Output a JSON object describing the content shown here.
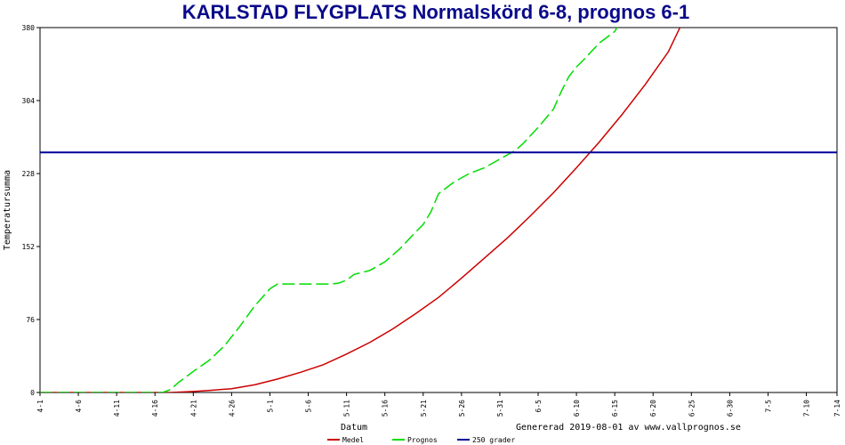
{
  "chart_data": {
    "type": "line",
    "title": "KARLSTAD FLYGPLATS Normalskörd 6-8, prognos 6-1",
    "xlabel": "Datum",
    "ylabel": "Temperatursumma",
    "ylim": [
      0,
      380
    ],
    "yticks": [
      0,
      76,
      152,
      228,
      304,
      380
    ],
    "xticks": [
      "4-1",
      "4-6",
      "4-11",
      "4-16",
      "4-21",
      "4-26",
      "5-1",
      "5-6",
      "5-11",
      "5-16",
      "5-21",
      "5-26",
      "5-31",
      "6-5",
      "6-10",
      "6-15",
      "6-20",
      "6-25",
      "6-30",
      "7-5",
      "7-10",
      "7-14"
    ],
    "xtick_days": [
      0,
      5,
      10,
      15,
      20,
      25,
      30,
      35,
      40,
      45,
      50,
      55,
      60,
      65,
      70,
      75,
      80,
      85,
      90,
      95,
      100,
      104
    ],
    "series": [
      {
        "name": "Medel",
        "color": "#cc0000",
        "style": "solid",
        "x": [
          0,
          15,
          17,
          20,
          22,
          25,
          28,
          31,
          34,
          37,
          40,
          43,
          46,
          49,
          52,
          55,
          58,
          61,
          64,
          67,
          70,
          73,
          76,
          79,
          82,
          83.5
        ],
        "y": [
          0,
          0,
          0,
          1,
          2,
          4,
          8,
          14,
          21,
          29,
          40,
          52,
          66,
          82,
          99,
          119,
          140,
          161,
          184,
          208,
          234,
          261,
          290,
          321,
          355,
          380
        ]
      },
      {
        "name": "Prognos",
        "color": "#00dd00",
        "style": "dashed",
        "x": [
          0,
          16,
          17,
          18,
          20,
          22,
          24,
          26,
          28,
          30,
          31,
          32,
          35,
          37,
          38,
          39,
          40,
          41,
          43,
          45,
          47,
          49,
          50,
          51,
          52,
          54,
          56,
          58,
          60,
          62,
          63,
          65,
          67,
          68,
          69,
          70,
          71,
          73,
          75,
          76,
          76.5
        ],
        "y": [
          0,
          0,
          3,
          10,
          22,
          33,
          48,
          68,
          90,
          108,
          113,
          113,
          113,
          113,
          113,
          114,
          117,
          123,
          127,
          136,
          150,
          167,
          175,
          188,
          207,
          219,
          228,
          234,
          243,
          252,
          259,
          276,
          295,
          313,
          329,
          339,
          347,
          364,
          376,
          390,
          400
        ]
      },
      {
        "name": "250 grader",
        "color": "#000099",
        "style": "solid",
        "x": [
          0,
          104
        ],
        "y": [
          250,
          250
        ]
      }
    ],
    "legend": [
      "Medel",
      "Prognos",
      "250 grader"
    ],
    "legend_position": "bottom",
    "grid": false
  },
  "footer": {
    "generated": "Genererad 2019-08-01 av www.vallprognos.se"
  }
}
